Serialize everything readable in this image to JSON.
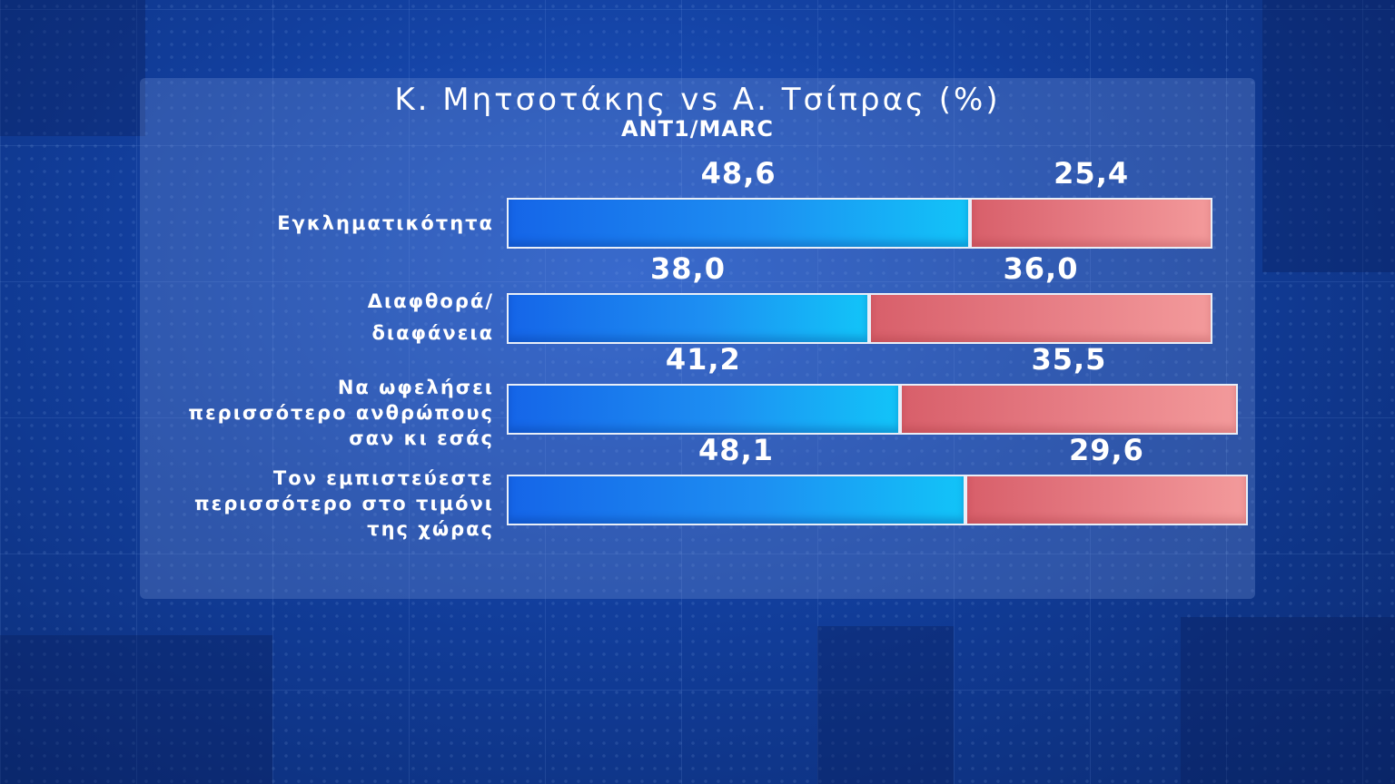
{
  "chart_data": {
    "type": "bar",
    "orientation": "horizontal-stacked",
    "title": "Κ. Μητσοτάκης vs Α. Τσίπρας (%)",
    "subtitle": "ANT1/MARC",
    "categories": [
      "Εγκληματικότητα",
      "Διαφθορά/\nδιαφάνεια",
      "Να ωφελήσει\nπερισσότερο ανθρώπους\nσαν κι εσάς",
      "Τον εμπιστεύεστε\nπερισσότερο στο τιμόνι\nτης χώρας"
    ],
    "series": [
      {
        "values": [
          48.6,
          38.0,
          41.2,
          48.1
        ],
        "labels": [
          "48,6",
          "38,0",
          "41,2",
          "48,1"
        ],
        "color": "#1a8cf0"
      },
      {
        "values": [
          25.4,
          36.0,
          35.5,
          29.6
        ],
        "labels": [
          "25,4",
          "36,0",
          "35,5",
          "29,6"
        ],
        "color": "#e8787f"
      }
    ],
    "legend": "none",
    "grid": false
  }
}
